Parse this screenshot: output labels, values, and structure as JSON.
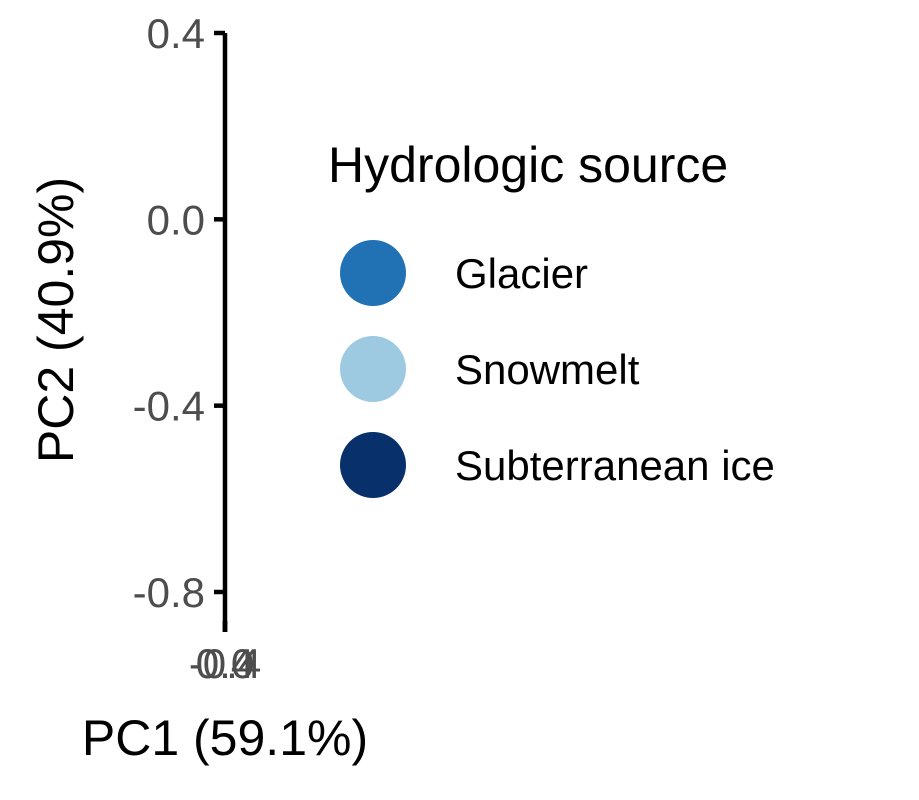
{
  "chart_data": {
    "type": "scatter",
    "title": "",
    "xlabel": "PC1 (59.1%)",
    "ylabel": "PC2 (40.9%)",
    "x_ticks": [
      "-0.4",
      "0.0",
      "0.4"
    ],
    "y_ticks": [
      "0.4",
      "0.0",
      "-0.4",
      "-0.8"
    ],
    "y_tick_values": [
      0.4,
      0.0,
      -0.4,
      -0.8
    ],
    "ylim": [
      -0.8,
      0.4
    ],
    "grid": false,
    "legend": {
      "title": "Hydrologic source",
      "position": "right",
      "entries": [
        {
          "label": "Glacier",
          "color": "#2171b5"
        },
        {
          "label": "Snowmelt",
          "color": "#9ecae1"
        },
        {
          "label": "Subterranean ice",
          "color": "#08306b"
        }
      ]
    },
    "series": [
      {
        "name": "Glacier",
        "color": "#2171b5",
        "points": []
      },
      {
        "name": "Snowmelt",
        "color": "#9ecae1",
        "points": []
      },
      {
        "name": "Subterranean ice",
        "color": "#08306b",
        "points": []
      }
    ]
  }
}
